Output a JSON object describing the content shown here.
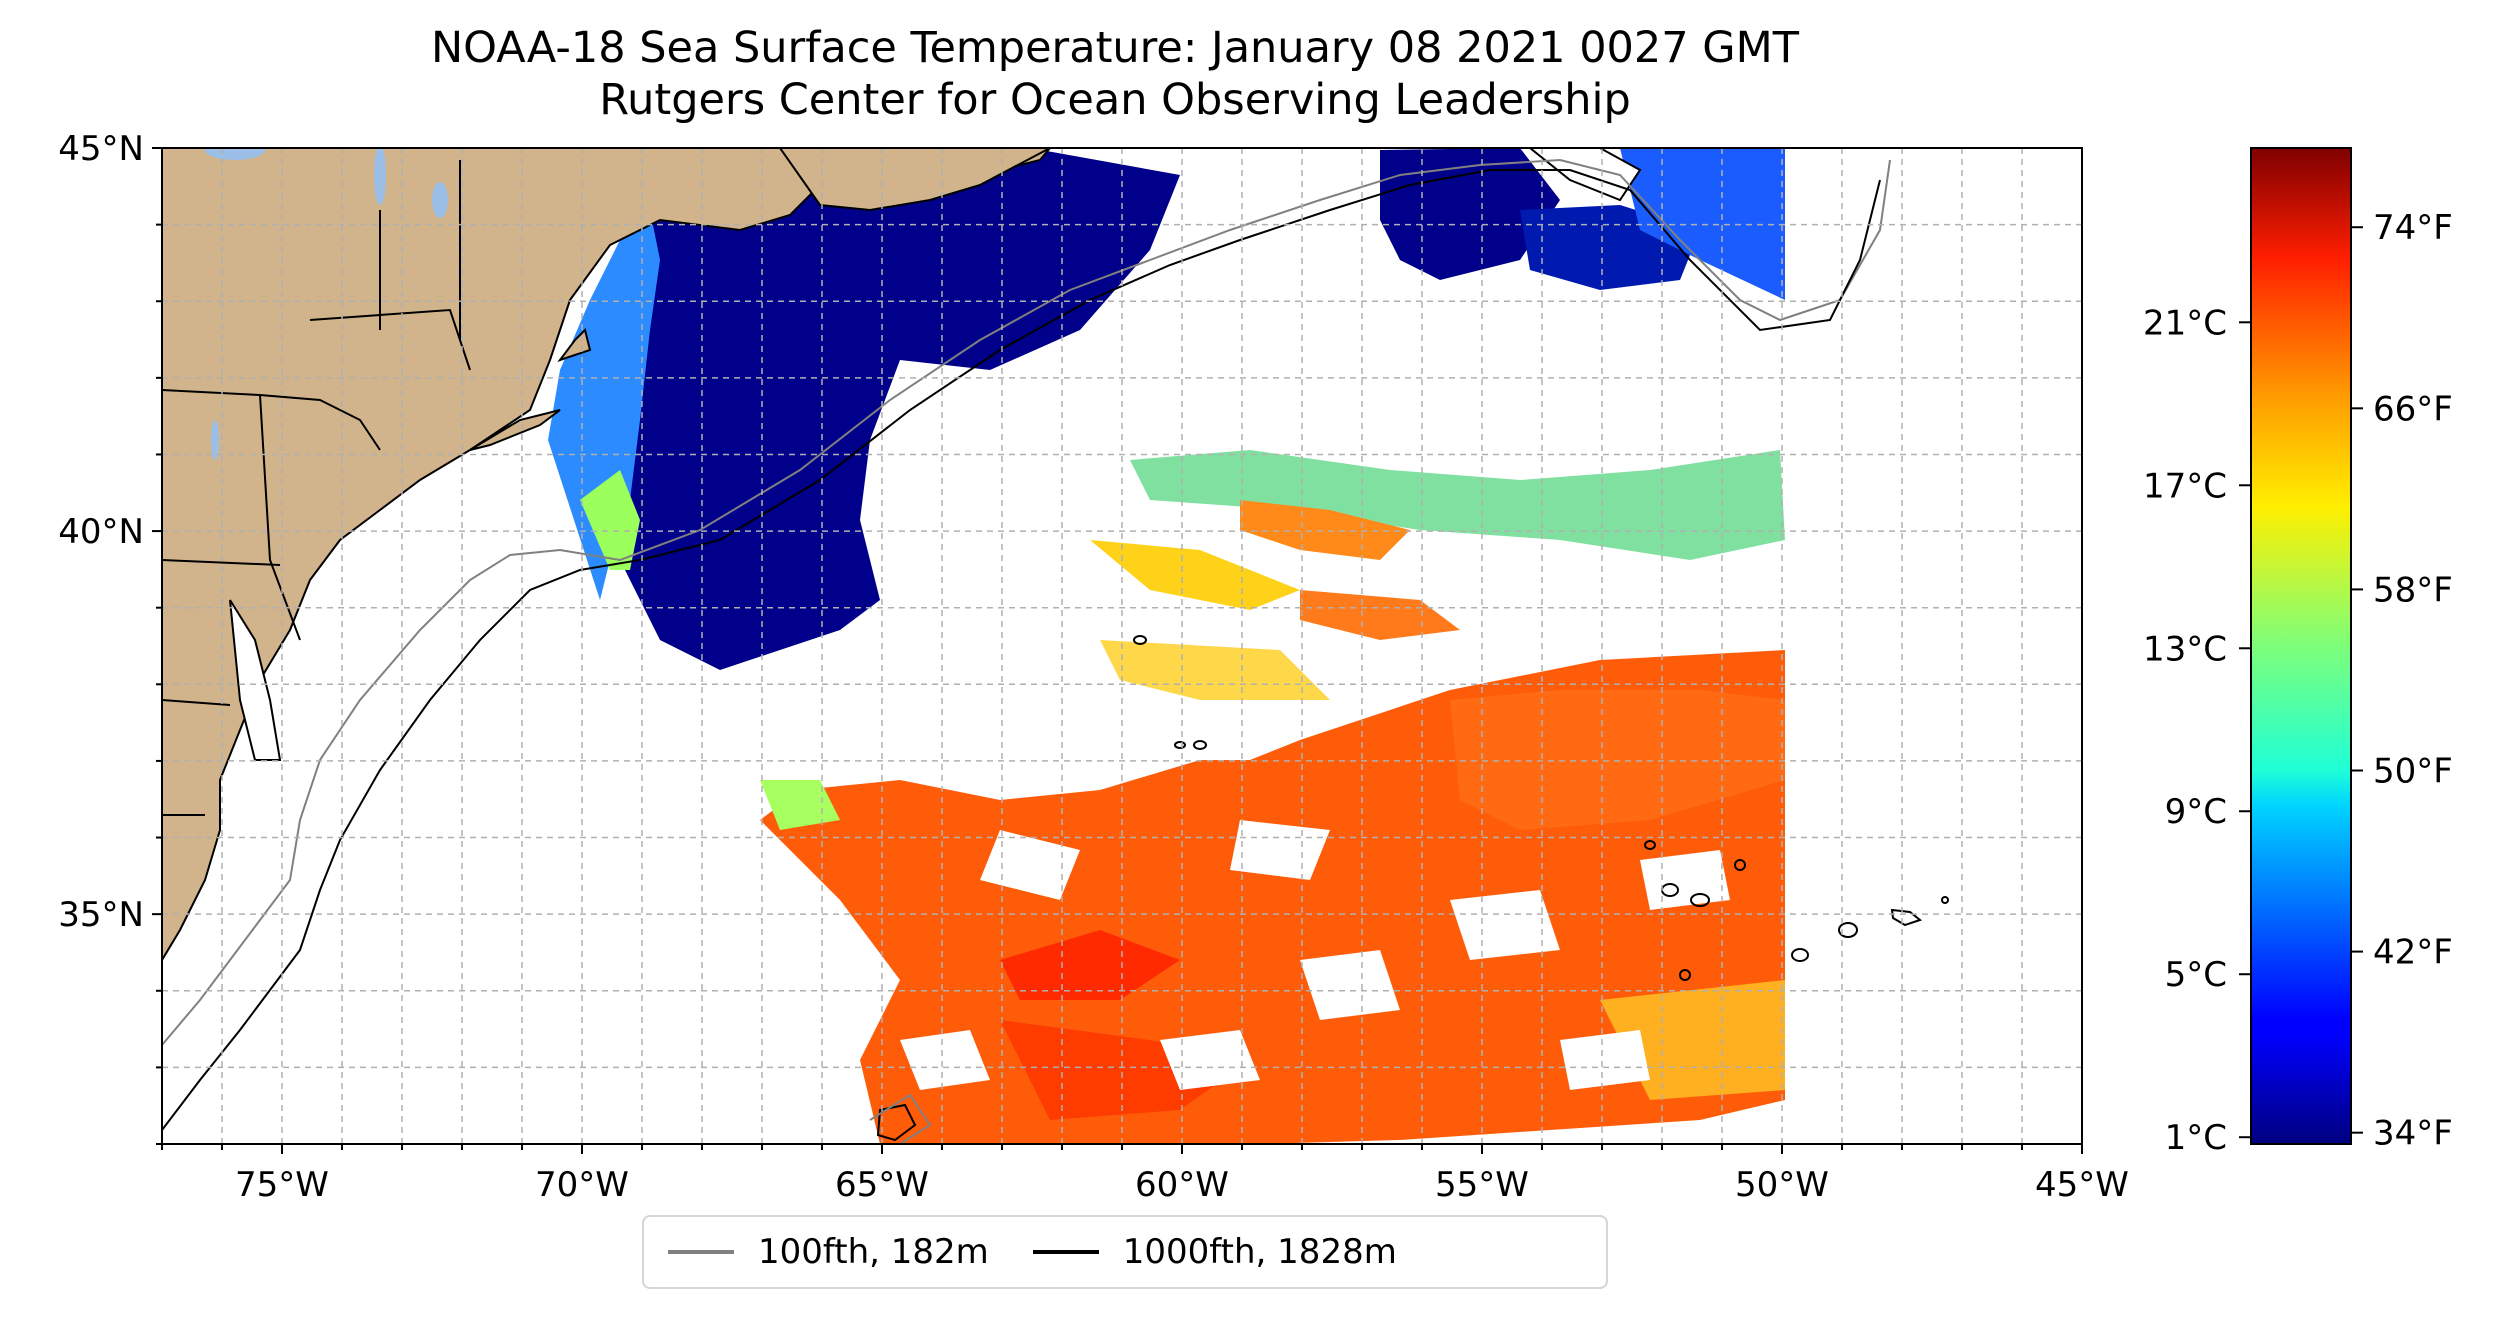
{
  "title": {
    "line1": "NOAA-18 Sea Surface Temperature: January 08 2021 0027 GMT",
    "line2": "Rutgers Center for Ocean Observing Leadership"
  },
  "map": {
    "lon_range": [
      -77,
      -45
    ],
    "lat_range": [
      32,
      45
    ],
    "lon_ticks": [
      {
        "value": -75,
        "label": "75°W"
      },
      {
        "value": -70,
        "label": "70°W"
      },
      {
        "value": -65,
        "label": "65°W"
      },
      {
        "value": -60,
        "label": "60°W"
      },
      {
        "value": -55,
        "label": "55°W"
      },
      {
        "value": -50,
        "label": "50°W"
      },
      {
        "value": -45,
        "label": "45°W"
      }
    ],
    "lat_ticks": [
      {
        "value": 45,
        "label": "45°N"
      },
      {
        "value": 40,
        "label": "40°N"
      },
      {
        "value": 35,
        "label": "35°N"
      }
    ],
    "grid": true,
    "land_color": "#d2b48c",
    "lake_color": "#9bbfe6"
  },
  "legend": {
    "items": [
      {
        "label": "100fth, 182m",
        "color": "#808080"
      },
      {
        "label": "1000fth, 1828m",
        "color": "#000000"
      }
    ]
  },
  "colorbar": {
    "colormap": "jet",
    "range_f": [
      33.5,
      77.5
    ],
    "fahrenheit_ticks": [
      {
        "value": 34,
        "label": "34°F"
      },
      {
        "value": 42,
        "label": "42°F"
      },
      {
        "value": 50,
        "label": "50°F"
      },
      {
        "value": 58,
        "label": "58°F"
      },
      {
        "value": 66,
        "label": "66°F"
      },
      {
        "value": 74,
        "label": "74°F"
      }
    ],
    "celsius_ticks": [
      {
        "value": 1,
        "label": "1°C"
      },
      {
        "value": 5,
        "label": "5°C"
      },
      {
        "value": 9,
        "label": "9°C"
      },
      {
        "value": 13,
        "label": "13°C"
      },
      {
        "value": 17,
        "label": "17°C"
      },
      {
        "value": 21,
        "label": "21°C"
      }
    ]
  }
}
